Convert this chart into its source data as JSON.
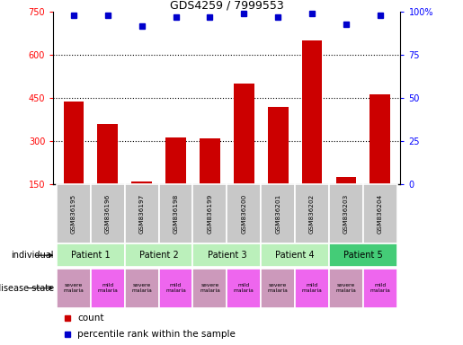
{
  "title": "GDS4259 / 7999553",
  "samples": [
    "GSM836195",
    "GSM836196",
    "GSM836197",
    "GSM836198",
    "GSM836199",
    "GSM836200",
    "GSM836201",
    "GSM836202",
    "GSM836203",
    "GSM836204"
  ],
  "counts": [
    440,
    360,
    160,
    315,
    310,
    500,
    420,
    650,
    175,
    465
  ],
  "percentiles": [
    98,
    98,
    92,
    97,
    97,
    99,
    97,
    99,
    93,
    98
  ],
  "percentile_scale": 100,
  "count_scale_max": 750,
  "count_scale_min": 150,
  "count_ticks": [
    150,
    300,
    450,
    600,
    750
  ],
  "percentile_ticks": [
    0,
    25,
    50,
    75,
    100
  ],
  "patients": [
    {
      "label": "Patient 1",
      "cols": [
        0,
        1
      ],
      "color": "#bbf0bb"
    },
    {
      "label": "Patient 2",
      "cols": [
        2,
        3
      ],
      "color": "#bbf0bb"
    },
    {
      "label": "Patient 3",
      "cols": [
        4,
        5
      ],
      "color": "#bbf0bb"
    },
    {
      "label": "Patient 4",
      "cols": [
        6,
        7
      ],
      "color": "#bbf0bb"
    },
    {
      "label": "Patient 5",
      "cols": [
        8,
        9
      ],
      "color": "#44cc77"
    }
  ],
  "disease_states": [
    "severe\nmalaria",
    "mild\nmalaria",
    "severe\nmalaria",
    "mild\nmalaria",
    "severe\nmalaria",
    "mild\nmalaria",
    "severe\nmalaria",
    "mild\nmalaria",
    "severe\nmalaria",
    "mild\nmalaria"
  ],
  "severe_color": "#cc99bb",
  "mild_color": "#ee66ee",
  "bar_color": "#cc0000",
  "dot_color": "#0000cc",
  "sample_bg_color": "#c8c8c8",
  "label_row1": "individual",
  "label_row2": "disease state",
  "grid_lines": [
    300,
    450,
    600
  ]
}
